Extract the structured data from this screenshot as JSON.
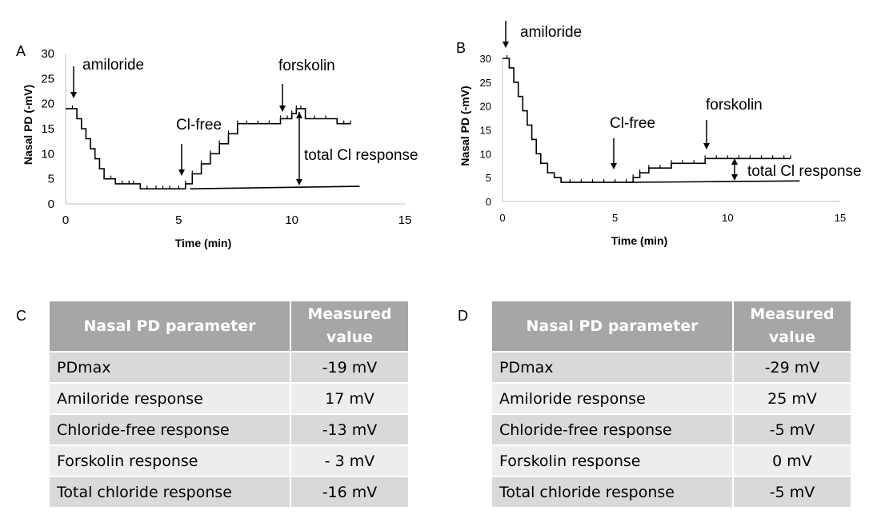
{
  "chart_data": [
    {
      "type": "line",
      "panel": "A",
      "xlabel": "Time (min)",
      "ylabel": "Nasal PD (-mV)",
      "xlim": [
        0,
        15
      ],
      "ylim": [
        0,
        30
      ],
      "xticks": [
        "0",
        "5",
        "10",
        "15"
      ],
      "yticks": [
        "0",
        "5",
        "10",
        "15",
        "20",
        "25",
        "30"
      ],
      "series": [
        {
          "name": "Nasal PD",
          "x": [
            0,
            0.3,
            0.5,
            0.7,
            0.9,
            1.1,
            1.3,
            1.5,
            1.7,
            2.0,
            2.2,
            2.5,
            2.8,
            3.0,
            3.3,
            3.6,
            4.0,
            4.3,
            4.6,
            5.0,
            5.3,
            5.6,
            6.0,
            6.4,
            6.8,
            7.2,
            7.6,
            8.0,
            8.5,
            9.0,
            9.5,
            9.8,
            10.0,
            10.2,
            10.4,
            10.6,
            11.0,
            11.5,
            12.0,
            12.3,
            12.6
          ],
          "values": [
            19,
            19,
            17,
            15,
            13,
            11,
            9,
            7,
            5,
            5,
            4,
            4,
            4,
            4,
            3,
            3,
            3,
            3,
            3,
            3,
            4,
            6,
            8,
            10,
            12,
            14,
            16,
            16,
            16,
            16,
            17,
            17,
            18,
            19,
            19,
            17,
            17,
            17,
            16,
            16,
            16
          ]
        },
        {
          "name": "baseline",
          "x": [
            5.5,
            13
          ],
          "values": [
            3,
            3.5
          ]
        }
      ],
      "annotations": [
        "amiloride",
        "Cl-free",
        "forskolin",
        "total Cl response"
      ]
    },
    {
      "type": "line",
      "panel": "B",
      "xlabel": "Time (min)",
      "ylabel": "Nasal PD (-mV)",
      "xlim": [
        0,
        15
      ],
      "ylim": [
        0,
        30
      ],
      "xticks": [
        "0",
        "5",
        "10",
        "15"
      ],
      "yticks": [
        "0",
        "5",
        "10",
        "15",
        "20",
        "25",
        "30"
      ],
      "series": [
        {
          "name": "Nasal PD",
          "x": [
            0,
            0.2,
            0.3,
            0.5,
            0.7,
            0.9,
            1.1,
            1.3,
            1.5,
            1.7,
            2.0,
            2.3,
            2.6,
            3.0,
            3.5,
            4.0,
            4.5,
            5.0,
            5.5,
            5.8,
            6.1,
            6.5,
            7.0,
            7.5,
            8.0,
            8.5,
            9.0,
            9.5,
            10.0,
            10.5,
            11.0,
            11.5,
            12.0,
            12.5,
            12.8
          ],
          "values": [
            30,
            30,
            28,
            25,
            22,
            19,
            16,
            13,
            10,
            8,
            6,
            5,
            4,
            4,
            4,
            4,
            4,
            4,
            4,
            5,
            6,
            7,
            7,
            8,
            8,
            8,
            9,
            9,
            9,
            9,
            9,
            9,
            9,
            9,
            9
          ]
        },
        {
          "name": "baseline",
          "x": [
            5.6,
            13.2
          ],
          "values": [
            4,
            4.3
          ]
        }
      ],
      "annotations": [
        "amiloride",
        "Cl-free",
        "forskolin",
        "total Cl response"
      ]
    }
  ],
  "panels": {
    "A": {
      "label": "A"
    },
    "B": {
      "label": "B"
    },
    "C": {
      "label": "C"
    },
    "D": {
      "label": "D"
    }
  },
  "table_c": {
    "header_param": "Nasal PD parameter",
    "header_value_1": "Measured",
    "header_value_2": "value",
    "rows": [
      {
        "param": "PDmax",
        "value": "-19 mV"
      },
      {
        "param": "Amiloride response",
        "value": "17 mV"
      },
      {
        "param": "Chloride-free response",
        "value": "-13 mV"
      },
      {
        "param": "Forskolin response",
        "value": "- 3 mV"
      },
      {
        "param": "Total chloride response",
        "value": "-16 mV"
      }
    ]
  },
  "table_d": {
    "header_param": "Nasal PD parameter",
    "header_value_1": "Measured",
    "header_value_2": "value",
    "rows": [
      {
        "param": "PDmax",
        "value": "-29 mV"
      },
      {
        "param": "Amiloride response",
        "value": "25 mV"
      },
      {
        "param": "Chloride-free response",
        "value": "-5 mV"
      },
      {
        "param": "Forskolin response",
        "value": "0 mV"
      },
      {
        "param": "Total chloride response",
        "value": "-5 mV"
      }
    ]
  }
}
